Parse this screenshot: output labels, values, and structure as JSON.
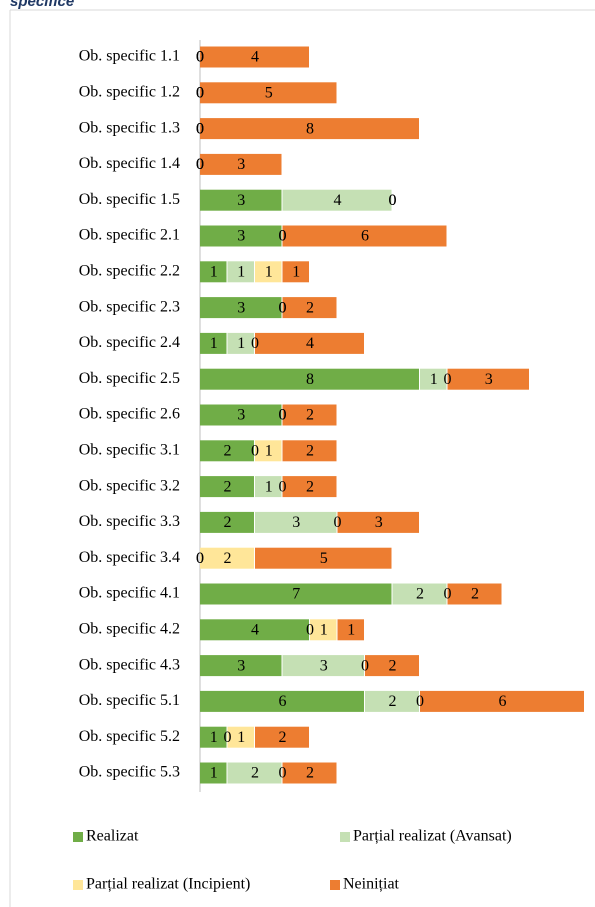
{
  "chart_data": {
    "type": "bar",
    "orientation": "horizontal",
    "stacked": true,
    "title": "specifice",
    "categories": [
      "Ob. specific 1.1",
      "Ob. specific 1.2",
      "Ob. specific 1.3",
      "Ob. specific 1.4",
      "Ob. specific 1.5",
      "Ob. specific 2.1",
      "Ob. specific 2.2",
      "Ob. specific 2.3",
      "Ob. specific 2.4",
      "Ob. specific 2.5",
      "Ob. specific 2.6",
      "Ob. specific 3.1",
      "Ob. specific 3.2",
      "Ob. specific 3.3",
      "Ob. specific 3.4",
      "Ob. specific 4.1",
      "Ob. specific 4.2",
      "Ob. specific 4.3",
      "Ob. specific 5.1",
      "Ob. specific 5.2",
      "Ob. specific 5.3"
    ],
    "series": [
      {
        "name": "Realizat",
        "color": "#70ad47",
        "values": [
          0,
          0,
          0,
          0,
          3,
          3,
          1,
          3,
          1,
          8,
          3,
          2,
          2,
          2,
          0,
          7,
          4,
          3,
          6,
          1,
          1
        ]
      },
      {
        "name": "Parțial realizat (Avansat)",
        "color": "#c5e0b4",
        "values": [
          0,
          0,
          0,
          0,
          4,
          0,
          1,
          0,
          1,
          1,
          0,
          0,
          1,
          3,
          0,
          2,
          0,
          3,
          2,
          0,
          2
        ]
      },
      {
        "name": "Parțial realizat (Incipient)",
        "color": "#ffe699",
        "values": [
          0,
          0,
          0,
          0,
          0,
          0,
          1,
          0,
          0,
          0,
          0,
          1,
          0,
          0,
          2,
          0,
          1,
          0,
          0,
          1,
          0
        ]
      },
      {
        "name": "Neinițiat",
        "color": "#ed7d31",
        "values": [
          4,
          5,
          8,
          3,
          0,
          6,
          1,
          2,
          4,
          3,
          2,
          2,
          2,
          3,
          5,
          2,
          1,
          2,
          6,
          2,
          2
        ]
      }
    ],
    "xlim": [
      0,
      14
    ]
  }
}
